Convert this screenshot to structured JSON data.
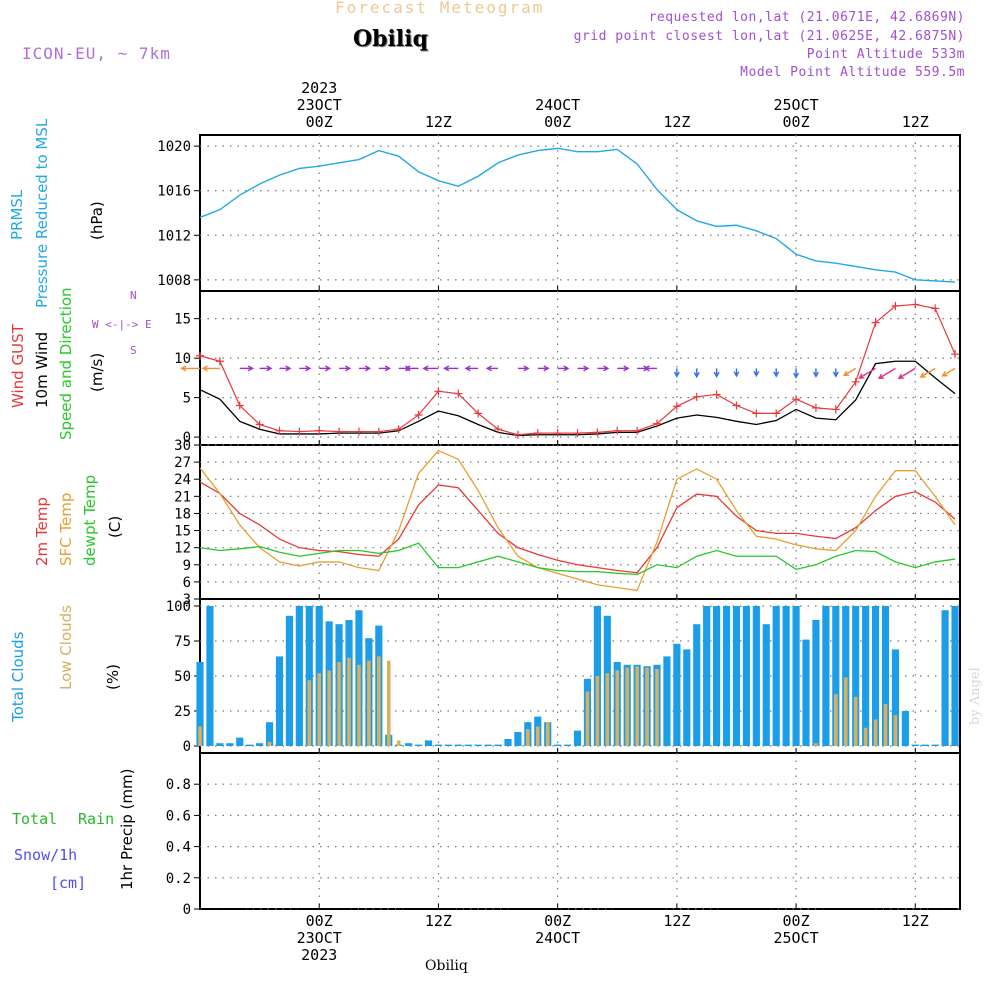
{
  "header": {
    "title": "Forecast Meteogram",
    "location": "Obiliq",
    "model": "ICON-EU, ~ 7km",
    "requested": "requested lon,lat (21.0671E, 42.6869N)",
    "gridpoint": "grid point closest lon,lat (21.0625E, 42.6875N)",
    "point_altitude": "Point Altitude 533m",
    "model_altitude": "Model Point Altitude 559.5m"
  },
  "time_axis": {
    "top_ticks": [
      {
        "hour": 24,
        "lines": [
          "2023",
          "23OCT",
          "00Z"
        ]
      },
      {
        "hour": 36,
        "lines": [
          "12Z"
        ]
      },
      {
        "hour": 48,
        "lines": [
          "24OCT",
          "00Z"
        ]
      },
      {
        "hour": 60,
        "lines": [
          "12Z"
        ]
      },
      {
        "hour": 72,
        "lines": [
          "25OCT",
          "00Z"
        ]
      },
      {
        "hour": 84,
        "lines": [
          "12Z"
        ]
      }
    ],
    "bottom_ticks": [
      {
        "hour": 24,
        "lines": [
          "00Z",
          "23OCT",
          "2023"
        ]
      },
      {
        "hour": 36,
        "lines": [
          "12Z"
        ]
      },
      {
        "hour": 48,
        "lines": [
          "00Z",
          "24OCT"
        ]
      },
      {
        "hour": 60,
        "lines": [
          "12Z"
        ]
      },
      {
        "hour": 72,
        "lines": [
          "00Z",
          "25OCT"
        ]
      },
      {
        "hour": 84,
        "lines": [
          "12Z"
        ]
      }
    ]
  },
  "panel_labels": {
    "pressure": {
      "l1": "PRMSL",
      "l2": "Pressure Reduced to MSL",
      "unit": "(hPa)"
    },
    "wind": {
      "gust": "Wind GUST",
      "wind10": "10m Wind",
      "dir": "Speed and Direction",
      "unit": "(m/s)",
      "compass_n": "N",
      "compass_s": "S",
      "compass_we": "W <-|-> E"
    },
    "temp": {
      "t2m": "2m Temp",
      "sfc": "SFC Temp",
      "dew": "dewpt Temp",
      "unit": "(C)"
    },
    "clouds": {
      "total": "Total Clouds",
      "low": "Low Clouds",
      "unit": "(%)"
    },
    "precip": {
      "rain1": "Total",
      "rain2": "Rain",
      "snow": "Snow/1h",
      "snow_unit": "[cm]",
      "axis": "1hr Precip (mm)"
    }
  },
  "footer": {
    "location": "Obiliq",
    "signature": "by Angel"
  },
  "colors": {
    "pressure": "#22a8e8",
    "gust": "#e83838",
    "wind": "#000000",
    "t2m": "#e83838",
    "sfc": "#e8a030",
    "dew": "#28c828",
    "total_cloud": "#1c9de8",
    "low_cloud": "#d8b060",
    "rain": "#28b828",
    "snow": "#5050e8",
    "label_purple": "#a050d0"
  },
  "chart_data": [
    {
      "type": "line",
      "title": "PRMSL Pressure Reduced to MSL",
      "ylabel": "(hPa)",
      "ylim": [
        1007,
        1021
      ],
      "yticks": [
        1008,
        1012,
        1016,
        1020
      ],
      "grid": true,
      "x_unit": "forecast hour",
      "x": [
        12,
        14,
        16,
        18,
        20,
        22,
        24,
        26,
        28,
        30,
        32,
        34,
        36,
        38,
        40,
        42,
        44,
        46,
        48,
        50,
        52,
        54,
        56,
        58,
        60,
        62,
        64,
        66,
        68,
        70,
        72,
        74,
        76,
        78,
        80,
        82,
        84,
        86,
        88
      ],
      "series": [
        {
          "name": "PRMSL",
          "values": [
            1013.6,
            1014.3,
            1015.6,
            1016.6,
            1017.4,
            1018.0,
            1018.2,
            1018.5,
            1018.8,
            1019.6,
            1019.1,
            1017.7,
            1016.9,
            1016.4,
            1017.3,
            1018.5,
            1019.2,
            1019.6,
            1019.8,
            1019.5,
            1019.5,
            1019.7,
            1018.4,
            1016.1,
            1014.3,
            1013.3,
            1012.8,
            1012.9,
            1012.4,
            1011.7,
            1010.3,
            1009.7,
            1009.5,
            1009.2,
            1008.9,
            1008.7,
            1008.0,
            1007.9,
            1007.8
          ]
        }
      ]
    },
    {
      "type": "line",
      "title": "Wind GUST / 10m Wind Speed and Direction",
      "ylabel": "(m/s)",
      "ylim": [
        -1,
        18.5
      ],
      "yticks": [
        0,
        5,
        10,
        15
      ],
      "grid": true,
      "x_unit": "forecast hour",
      "x": [
        12,
        14,
        16,
        18,
        20,
        22,
        24,
        26,
        28,
        30,
        32,
        34,
        36,
        38,
        40,
        42,
        44,
        46,
        48,
        50,
        52,
        54,
        56,
        58,
        60,
        62,
        64,
        66,
        68,
        70,
        72,
        74,
        76,
        78,
        80,
        82,
        84,
        86,
        88
      ],
      "series": [
        {
          "name": "Wind GUST",
          "values": [
            10.3,
            9.6,
            4.0,
            1.6,
            0.8,
            0.7,
            0.8,
            0.7,
            0.7,
            0.7,
            1.0,
            2.8,
            5.8,
            5.5,
            3.0,
            1.0,
            0.3,
            0.5,
            0.5,
            0.5,
            0.6,
            0.8,
            0.8,
            1.7,
            3.9,
            5.1,
            5.4,
            4.0,
            3.0,
            3.0,
            4.8,
            3.7,
            3.5,
            7.0,
            14.5,
            16.6,
            16.8,
            16.3,
            10.5
          ]
        },
        {
          "name": "10m Wind",
          "values": [
            6.0,
            4.8,
            2.0,
            1.0,
            0.4,
            0.4,
            0.4,
            0.5,
            0.5,
            0.5,
            0.8,
            2.0,
            3.3,
            2.7,
            1.6,
            0.6,
            0.2,
            0.3,
            0.3,
            0.3,
            0.4,
            0.6,
            0.6,
            1.4,
            2.4,
            2.8,
            2.5,
            2.0,
            1.6,
            2.1,
            3.5,
            2.4,
            2.2,
            4.7,
            9.3,
            9.6,
            9.6,
            7.5,
            5.5
          ]
        }
      ],
      "wind_barbs": {
        "directions": [
          "W",
          "W",
          "E",
          "E",
          "E",
          "E",
          "E",
          "E",
          "E",
          "E",
          "E",
          "W",
          "W",
          "W",
          "W",
          "W",
          "E",
          "E",
          "E",
          "E",
          "E",
          "E",
          "E",
          "W",
          "S",
          "S",
          "S",
          "S",
          "S",
          "S",
          "S",
          "S",
          "S",
          "SW",
          "SW",
          "SW",
          "SW",
          "SW",
          "SW"
        ]
      }
    },
    {
      "type": "line",
      "title": "2m Temp / SFC Temp / dewpt Temp",
      "ylabel": "(C)",
      "ylim": [
        3,
        30
      ],
      "yticks": [
        3,
        6,
        9,
        12,
        15,
        18,
        21,
        24,
        27,
        30
      ],
      "grid": true,
      "x_unit": "forecast hour",
      "x": [
        12,
        14,
        16,
        18,
        20,
        22,
        24,
        26,
        28,
        30,
        32,
        34,
        36,
        38,
        40,
        42,
        44,
        46,
        48,
        50,
        52,
        54,
        56,
        58,
        60,
        62,
        64,
        66,
        68,
        70,
        72,
        74,
        76,
        78,
        80,
        82,
        84,
        86,
        88
      ],
      "series": [
        {
          "name": "2m Temp",
          "values": [
            23.5,
            21.5,
            18.0,
            16.0,
            13.5,
            12.0,
            11.5,
            11.3,
            10.8,
            10.5,
            13.5,
            19.5,
            23.0,
            22.5,
            18.5,
            14.5,
            12.0,
            10.8,
            9.8,
            9.0,
            8.5,
            8.0,
            7.6,
            12.0,
            19.0,
            21.4,
            21.0,
            17.5,
            15.0,
            14.5,
            14.5,
            14.0,
            13.6,
            15.5,
            18.5,
            21.0,
            21.8,
            20.0,
            17.0
          ]
        },
        {
          "name": "SFC Temp",
          "values": [
            26.0,
            21.5,
            16.0,
            12.0,
            9.5,
            8.8,
            9.5,
            9.5,
            8.5,
            8.0,
            15.0,
            25.0,
            29.0,
            27.5,
            22.0,
            15.5,
            10.5,
            8.5,
            7.5,
            6.5,
            5.5,
            5.0,
            4.5,
            13.0,
            24.0,
            25.8,
            24.0,
            18.5,
            14.0,
            13.5,
            12.5,
            11.8,
            11.5,
            15.0,
            21.0,
            25.5,
            25.5,
            21.0,
            16.0
          ]
        },
        {
          "name": "dewpt Temp",
          "values": [
            12.0,
            11.5,
            11.8,
            12.2,
            11.2,
            10.5,
            11.0,
            11.5,
            11.5,
            11.0,
            11.5,
            12.8,
            8.5,
            8.5,
            9.5,
            10.5,
            9.5,
            8.5,
            8.0,
            7.8,
            7.8,
            7.5,
            7.3,
            9.0,
            8.5,
            10.5,
            11.5,
            10.5,
            10.5,
            10.5,
            8.2,
            9.0,
            10.5,
            11.5,
            11.3,
            9.5,
            8.5,
            9.5,
            10.0
          ]
        }
      ]
    },
    {
      "type": "bar",
      "title": "Total Clouds / Low Clouds",
      "ylabel": "(%)",
      "ylim": [
        -5,
        105
      ],
      "yticks": [
        0,
        25,
        50,
        75,
        100
      ],
      "grid": true,
      "x_unit": "forecast hour",
      "x": [
        12,
        13,
        14,
        15,
        16,
        17,
        18,
        19,
        20,
        21,
        22,
        23,
        24,
        25,
        26,
        27,
        28,
        29,
        30,
        31,
        32,
        33,
        34,
        35,
        36,
        37,
        38,
        39,
        40,
        41,
        42,
        43,
        44,
        45,
        46,
        47,
        48,
        49,
        50,
        51,
        52,
        53,
        54,
        55,
        56,
        57,
        58,
        59,
        60,
        61,
        62,
        63,
        64,
        65,
        66,
        67,
        68,
        69,
        70,
        71,
        72,
        73,
        74,
        75,
        76,
        77,
        78,
        79,
        80,
        81,
        82,
        83,
        84,
        85,
        86,
        87,
        88
      ],
      "series": [
        {
          "name": "Total Clouds",
          "values": [
            60,
            100,
            2,
            2,
            6,
            1,
            2,
            17,
            64,
            93,
            100,
            100,
            100,
            89,
            87,
            90,
            97,
            77,
            86,
            8,
            1,
            2,
            1,
            4,
            1,
            1,
            1,
            1,
            1,
            1,
            1,
            5,
            10,
            17,
            21,
            17,
            1,
            1,
            11,
            48,
            100,
            93,
            60,
            58,
            58,
            57,
            58,
            64,
            73,
            69,
            87,
            100,
            100,
            100,
            100,
            100,
            100,
            87,
            100,
            100,
            100,
            76,
            90,
            100,
            100,
            100,
            100,
            100,
            100,
            100,
            69,
            25,
            1,
            1,
            1,
            97,
            100
          ]
        },
        {
          "name": "Low Clouds",
          "values": [
            14,
            0,
            0,
            0,
            0,
            0,
            0,
            3,
            0,
            0,
            0,
            47,
            52,
            54,
            60,
            63,
            58,
            61,
            64,
            61,
            4,
            0,
            0,
            0,
            0,
            0,
            0,
            0,
            0,
            0,
            0,
            0,
            0,
            12,
            14,
            17,
            0,
            0,
            0,
            39,
            50,
            52,
            54,
            56,
            57,
            56,
            55,
            0,
            0,
            0,
            0,
            0,
            0,
            0,
            0,
            0,
            0,
            0,
            0,
            0,
            0,
            0,
            2,
            0,
            37,
            49,
            35,
            13,
            19,
            30,
            22,
            0,
            0,
            0,
            0,
            0,
            0
          ]
        }
      ]
    },
    {
      "type": "line",
      "title": "Total Rain / Snow 1h",
      "ylabel": "1hr Precip (mm)",
      "ylim": [
        0,
        1.0
      ],
      "yticks": [
        0,
        0.2,
        0.4,
        0.6,
        0.8
      ],
      "grid": true,
      "x_unit": "forecast hour",
      "x": [
        12,
        88
      ],
      "series": [
        {
          "name": "Total Rain",
          "values": [
            0,
            0
          ]
        }
      ]
    }
  ]
}
